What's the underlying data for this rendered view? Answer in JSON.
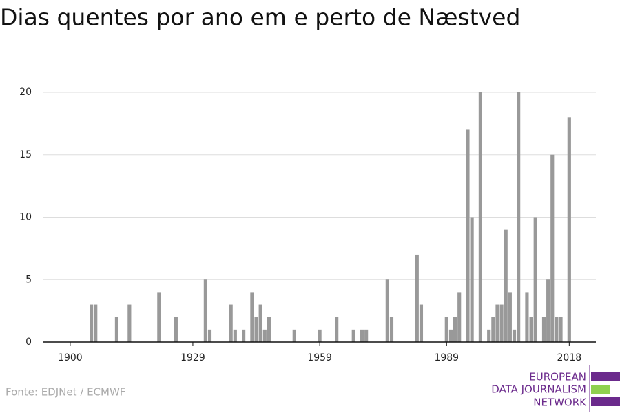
{
  "chart_data": {
    "type": "bar",
    "title": "Dias quentes por ano em e perto de Næstved",
    "x": [
      1905,
      1906,
      1911,
      1914,
      1921,
      1925,
      1932,
      1933,
      1938,
      1939,
      1941,
      1943,
      1944,
      1945,
      1946,
      1947,
      1953,
      1959,
      1963,
      1967,
      1969,
      1970,
      1975,
      1976,
      1982,
      1983,
      1989,
      1990,
      1991,
      1992,
      1994,
      1995,
      1997,
      1999,
      2000,
      2001,
      2002,
      2003,
      2004,
      2005,
      2006,
      2008,
      2009,
      2010,
      2012,
      2013,
      2014,
      2015,
      2016,
      2018
    ],
    "values": [
      3,
      3,
      2,
      3,
      4,
      2,
      5,
      1,
      3,
      1,
      1,
      4,
      2,
      3,
      1,
      2,
      1,
      1,
      2,
      1,
      1,
      1,
      5,
      2,
      7,
      3,
      2,
      1,
      2,
      4,
      17,
      10,
      20,
      1,
      2,
      3,
      3,
      9,
      4,
      1,
      20,
      4,
      2,
      10,
      2,
      5,
      15,
      2,
      2,
      18
    ],
    "color": "#999999",
    "xlim": [
      1893.5,
      2024.3
    ],
    "xticks": [
      1900,
      1929,
      1959,
      1989,
      2018
    ],
    "ylim": [
      0,
      20
    ],
    "yticks": [
      0,
      5,
      10,
      15,
      20
    ],
    "grid": true,
    "source": "Fonte: EDJNet / ECMWF"
  },
  "logo": {
    "lines": [
      "EUROPEAN",
      "DATA JOURNALISM",
      "NETWORK"
    ]
  }
}
